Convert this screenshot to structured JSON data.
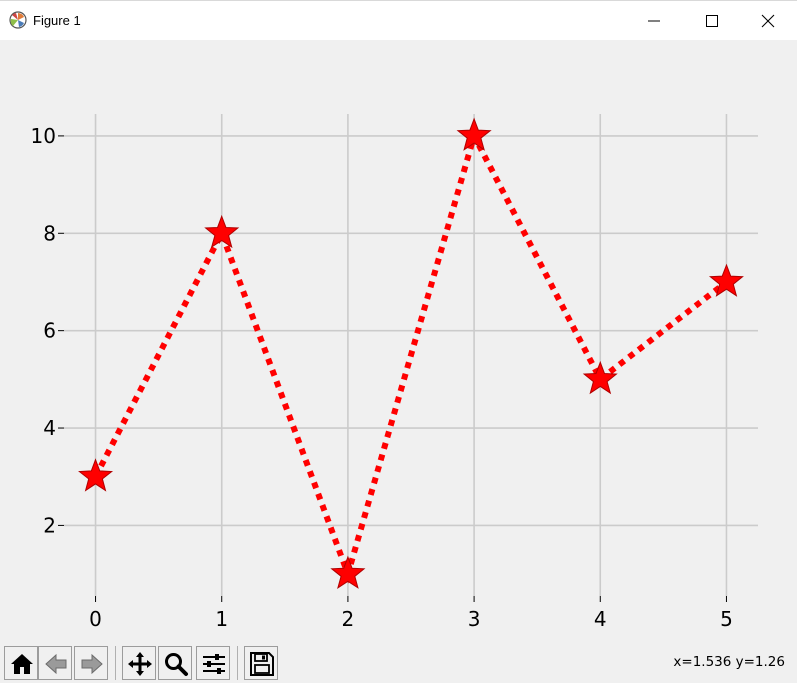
{
  "window": {
    "title": "Figure 1",
    "icon": "matplotlib-logo-icon",
    "controls": [
      "minimize-icon",
      "maximize-icon",
      "close-icon"
    ]
  },
  "toolbar": {
    "buttons": [
      "home-icon",
      "back-icon",
      "forward-icon",
      "pan-icon",
      "zoom-icon",
      "configure-subplots-icon",
      "save-icon"
    ],
    "coords": "x=1.536 y=1.26"
  },
  "chart_data": {
    "type": "line",
    "x": [
      0,
      1,
      2,
      3,
      4,
      5
    ],
    "y": [
      3,
      8,
      1,
      10,
      5,
      7
    ],
    "xticks": [
      "0",
      "1",
      "2",
      "3",
      "4",
      "5"
    ],
    "yticks": [
      "2",
      "4",
      "6",
      "8",
      "10"
    ],
    "xlim": [
      -0.25,
      5.25
    ],
    "ylim": [
      0.55,
      10.45
    ],
    "grid": true,
    "line_style": "dotted",
    "marker": "star",
    "color": "#ff0000",
    "marker_edge_color": "#b00000",
    "grid_color": "#cbcbcb"
  }
}
